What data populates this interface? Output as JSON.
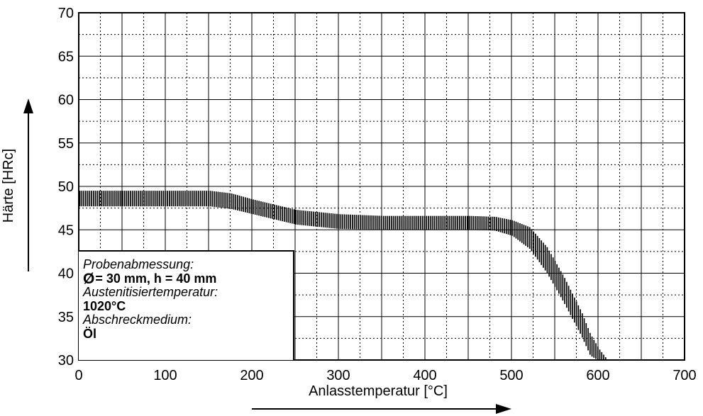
{
  "chart_data": {
    "type": "area",
    "title": "",
    "xlabel": "Anlasstemperatur [°C]",
    "ylabel": "Härte [HRc]",
    "xlim": [
      0,
      700
    ],
    "ylim": [
      30,
      70
    ],
    "xticks": [
      0,
      100,
      200,
      300,
      400,
      500,
      600,
      700
    ],
    "yticks": [
      30,
      35,
      40,
      45,
      50,
      55,
      60,
      65,
      70
    ],
    "grid": true,
    "band": {
      "description": "hatched hardness scatter band",
      "x": [
        0,
        25,
        50,
        100,
        150,
        175,
        200,
        250,
        300,
        350,
        400,
        450,
        480,
        500,
        520,
        540,
        560,
        580,
        590,
        600,
        610
      ],
      "upper": [
        49.5,
        49.5,
        49.5,
        49.5,
        49.5,
        49.2,
        48.5,
        47.3,
        46.8,
        46.6,
        46.6,
        46.6,
        46.5,
        46.1,
        45.3,
        43.0,
        39.5,
        35.5,
        33.0,
        31.3,
        30.0
      ],
      "lower": [
        47.7,
        47.7,
        47.7,
        47.7,
        47.7,
        47.4,
        46.8,
        45.6,
        45.1,
        45.0,
        45.0,
        45.0,
        44.9,
        44.3,
        42.8,
        40.0,
        36.5,
        32.7,
        30.5,
        29.9,
        29.9
      ]
    },
    "legend": {
      "position": "bottom-left",
      "line1": "Probenabmessung:",
      "line2_symbol": "Ø",
      "line2": "= 30 mm, h = 40 mm",
      "line3": "Austenitisiertemperatur:",
      "line4": "1020°C",
      "line5": "Abschreckmedium:",
      "line6": "Öl"
    },
    "colors": {
      "axis": "#000000",
      "band": "#000000",
      "grid": "#000000"
    }
  }
}
